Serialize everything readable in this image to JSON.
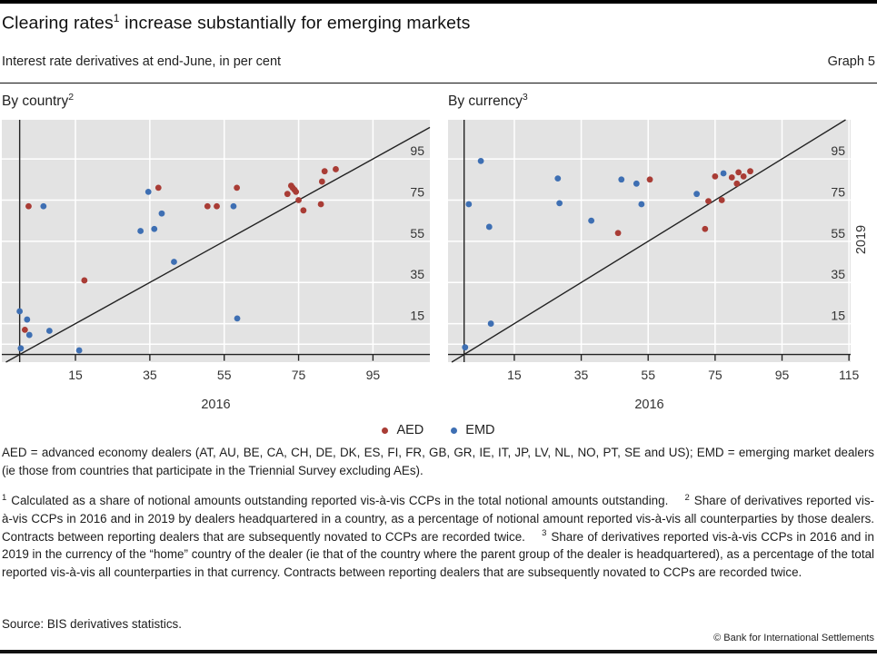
{
  "header": {
    "title_pre": "Clearing rates",
    "title_sup": "1",
    "title_post": " increase substantially for emerging markets",
    "subtitle": "Interest rate derivatives at end-June, in per cent",
    "graph_label": "Graph 5"
  },
  "style": {
    "plot_bg": "#e3e3e3",
    "gridline": "#ffffff",
    "axis_line": "#222222",
    "aed_red": "#a93c35",
    "emd_blue": "#3e6fb3"
  },
  "chart_data": [
    {
      "type": "scatter",
      "title": "By country",
      "title_sup": "2",
      "xlabel": "2016",
      "ylabel": "",
      "xlim": [
        -4.8,
        110.3
      ],
      "ylim": [
        -3.7,
        114.0
      ],
      "xticks": [
        15,
        35,
        55,
        75,
        95
      ],
      "yticks": [
        15,
        35,
        55,
        75,
        95
      ],
      "extra_gridline_y": 5,
      "diagonal": true,
      "grid": true,
      "series": [
        {
          "name": "AED",
          "color": "#a93c35",
          "points": [
            [
              1.4,
              12
            ],
            [
              2.4,
              72
            ],
            [
              17.4,
              36
            ],
            [
              37.3,
              81
            ],
            [
              50.5,
              72
            ],
            [
              53,
              72
            ],
            [
              58.4,
              81
            ],
            [
              72,
              78
            ],
            [
              73,
              82
            ],
            [
              73.4,
              81
            ],
            [
              73.9,
              80
            ],
            [
              74.3,
              79
            ],
            [
              75,
              75
            ],
            [
              76.3,
              70
            ],
            [
              81,
              73
            ],
            [
              81.3,
              84
            ],
            [
              82,
              89
            ],
            [
              85,
              90
            ]
          ]
        },
        {
          "name": "EMD",
          "color": "#3e6fb3",
          "points": [
            [
              0,
              21
            ],
            [
              0.3,
              3
            ],
            [
              2,
              17
            ],
            [
              2.6,
              9.5
            ],
            [
              6.4,
              72
            ],
            [
              8,
              11.5
            ],
            [
              16,
              2
            ],
            [
              32.5,
              60
            ],
            [
              34.6,
              79
            ],
            [
              36.2,
              61
            ],
            [
              38.2,
              68.5
            ],
            [
              41.5,
              45
            ],
            [
              57.5,
              72
            ],
            [
              58.5,
              17.5
            ]
          ]
        }
      ]
    },
    {
      "type": "scatter",
      "title": "By currency",
      "title_sup": "3",
      "xlabel": "2016",
      "ylabel": "2019",
      "xlim": [
        -4.8,
        115.5
      ],
      "ylim": [
        -3.7,
        114.0
      ],
      "xticks": [
        15,
        35,
        55,
        75,
        95,
        115
      ],
      "yticks": [
        15,
        35,
        55,
        75,
        95
      ],
      "extra_gridline_y": 5,
      "diagonal": true,
      "grid": true,
      "series": [
        {
          "name": "AED",
          "color": "#a93c35",
          "points": [
            [
              46,
              59
            ],
            [
              55.5,
              85
            ],
            [
              72,
              61
            ],
            [
              73,
              74.5
            ],
            [
              75,
              86.5
            ],
            [
              77,
              75
            ],
            [
              80,
              86
            ],
            [
              81.5,
              83
            ],
            [
              82,
              88.5
            ],
            [
              83.5,
              86.5
            ],
            [
              85.5,
              89
            ]
          ]
        },
        {
          "name": "EMD",
          "color": "#3e6fb3",
          "points": [
            [
              0.3,
              3.5
            ],
            [
              1.4,
              73
            ],
            [
              5,
              94
            ],
            [
              7.5,
              62
            ],
            [
              8,
              15
            ],
            [
              28,
              85.5
            ],
            [
              28.5,
              73.5
            ],
            [
              38,
              65
            ],
            [
              47,
              85
            ],
            [
              51.5,
              83
            ],
            [
              53,
              73
            ],
            [
              69.5,
              78
            ],
            [
              77.5,
              88
            ]
          ]
        }
      ]
    }
  ],
  "right_axis_label": "2019",
  "legend": [
    {
      "label": "AED",
      "color": "#a93c35"
    },
    {
      "label": "EMD",
      "color": "#3e6fb3"
    }
  ],
  "footnotes": {
    "definitions": "AED = advanced economy dealers (AT, AU, BE, CA, CH, DE, DK, ES, FI, FR, GB, GR, IE, IT, JP, LV, NL, NO, PT, SE and US); EMD = emerging market dealers (ie those from countries that participate in the Triennial Survey excluding AEs).",
    "items": [
      {
        "marker": "1",
        "text": "Calculated as a share of notional amounts outstanding reported vis-à-vis CCPs in the total notional amounts outstanding."
      },
      {
        "marker": "2",
        "text": "Share of derivatives reported vis-à-vis CCPs in 2016 and in 2019 by dealers headquartered in a country, as a percentage of notional amount reported vis-à-vis all counterparties by those dealers. Contracts between reporting dealers that are subsequently novated to CCPs are recorded twice."
      },
      {
        "marker": "3",
        "text": "Share of derivatives reported vis-à-vis CCPs in 2016 and in 2019 in the currency of the “home” country of the dealer (ie that of the country where the parent group of the dealer is headquartered), as a percentage of the total reported vis-à-vis all counterparties in that currency. Contracts between reporting dealers that are subsequently novated to CCPs are recorded twice."
      }
    ]
  },
  "footer": {
    "source": "Source: BIS derivatives statistics.",
    "copyright": "© Bank for International Settlements"
  }
}
